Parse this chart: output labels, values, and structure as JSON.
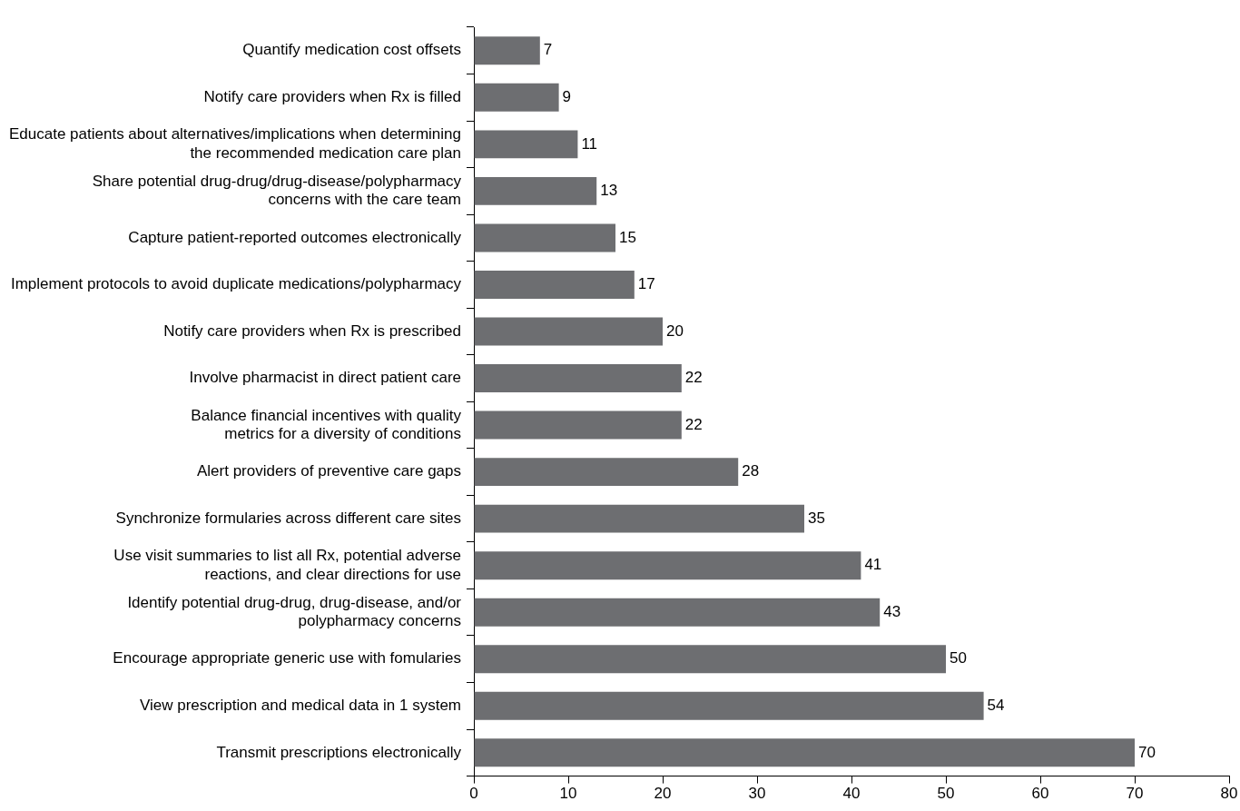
{
  "chart_data": {
    "type": "bar",
    "orientation": "horizontal",
    "categories": [
      "Quantify medication cost offsets",
      "Notify care providers when Rx is filled",
      "Educate patients about alternatives/implications when determining\nthe recommended medication care plan",
      "Share potential drug-drug/drug-disease/polypharmacy\nconcerns with the care team",
      "Capture patient-reported outcomes electronically",
      "Implement protocols to avoid duplicate medications/polypharmacy",
      "Notify care providers when Rx is prescribed",
      "Involve pharmacist in direct patient care",
      "Balance financial incentives with quality\nmetrics for a diversity of conditions",
      "Alert providers of preventive care gaps",
      "Synchronize formularies across different care sites",
      "Use visit summaries to list all Rx, potential adverse\nreactions, and clear directions for use",
      "Identify potential drug-drug, drug-disease, and/or\npolypharmacy concerns",
      "Encourage appropriate generic use with fomularies",
      "View prescription and medical data in 1 system",
      "Transmit prescriptions electronically"
    ],
    "values": [
      7,
      9,
      11,
      13,
      15,
      17,
      20,
      22,
      22,
      28,
      35,
      41,
      43,
      50,
      54,
      70
    ],
    "color": "#6d6e71",
    "xlim": [
      0,
      80
    ],
    "xticks": [
      0,
      10,
      20,
      30,
      40,
      50,
      60,
      70,
      80
    ],
    "data_labels": true,
    "grid": false,
    "legend": false
  }
}
